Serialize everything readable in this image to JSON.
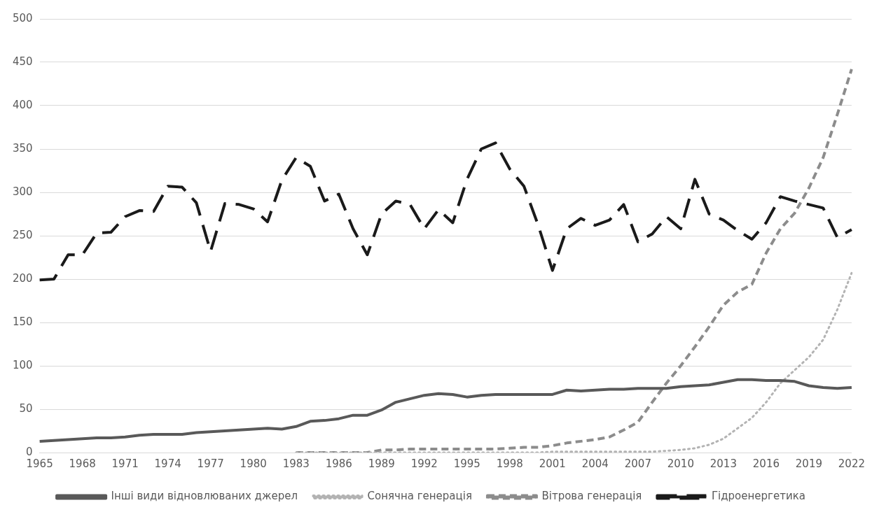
{
  "chart_data": {
    "type": "line",
    "categories": [
      "1965",
      null,
      null,
      "1968",
      null,
      null,
      "1971",
      null,
      null,
      "1974",
      null,
      null,
      "1977",
      null,
      null,
      "1980",
      null,
      null,
      "1983",
      null,
      null,
      "1986",
      null,
      null,
      "1989",
      null,
      null,
      "1992",
      null,
      null,
      "1995",
      null,
      null,
      "1998",
      null,
      null,
      "2001",
      null,
      null,
      "2004",
      null,
      null,
      "2007",
      null,
      null,
      "2010",
      null,
      null,
      "2013",
      null,
      null,
      "2016",
      null,
      null,
      "2019",
      null,
      null,
      "2022"
    ],
    "series": [
      {
        "name": "Інші види відновлюваних джерел",
        "color": "#595959",
        "line_style": "solid",
        "values": [
          13,
          14,
          15,
          16,
          17,
          17,
          18,
          20,
          21,
          21,
          21,
          23,
          24,
          25,
          26,
          27,
          28,
          27,
          30,
          36,
          37,
          39,
          43,
          43,
          49,
          58,
          62,
          66,
          68,
          67,
          64,
          66,
          67,
          67,
          67,
          67,
          67,
          72,
          71,
          72,
          73,
          73,
          74,
          74,
          74,
          76,
          77,
          78,
          81,
          84,
          84,
          83,
          83,
          82,
          77,
          75,
          74,
          75
        ]
      },
      {
        "name": "Сонячна генерація",
        "color": "#b3b3b3",
        "line_style": "dotted",
        "values": [
          null,
          null,
          null,
          null,
          null,
          null,
          null,
          null,
          null,
          null,
          null,
          null,
          null,
          null,
          null,
          null,
          null,
          null,
          0,
          0,
          0,
          0,
          0,
          0,
          0,
          0,
          0,
          0,
          0,
          0,
          0,
          0,
          0,
          0,
          0,
          0,
          1,
          1,
          1,
          1,
          1,
          1,
          1,
          1,
          2,
          3,
          5,
          9,
          16,
          28,
          40,
          58,
          80,
          95,
          110,
          130,
          165,
          207
        ]
      },
      {
        "name": "Вітрова генерація",
        "color": "#8c8c8c",
        "line_style": "dashed",
        "values": [
          null,
          null,
          null,
          null,
          null,
          null,
          null,
          null,
          null,
          null,
          null,
          null,
          null,
          null,
          null,
          null,
          null,
          null,
          0,
          0,
          0,
          0,
          0,
          0,
          3,
          3,
          4,
          4,
          4,
          4,
          4,
          4,
          4,
          5,
          6,
          6,
          8,
          11,
          13,
          15,
          18,
          26,
          35,
          58,
          80,
          100,
          122,
          145,
          170,
          185,
          194,
          230,
          258,
          276,
          305,
          340,
          390,
          442
        ]
      },
      {
        "name": "Гідроенергетика",
        "color": "#1a1a1a",
        "line_style": "dashed",
        "values": [
          199,
          200,
          228,
          228,
          253,
          254,
          272,
          279,
          278,
          307,
          306,
          288,
          232,
          287,
          286,
          281,
          266,
          314,
          340,
          330,
          290,
          298,
          258,
          228,
          275,
          290,
          286,
          258,
          280,
          265,
          315,
          350,
          357,
          327,
          307,
          262,
          210,
          258,
          270,
          262,
          268,
          286,
          243,
          252,
          272,
          258,
          315,
          275,
          268,
          256,
          246,
          265,
          295,
          290,
          286,
          282,
          248,
          257
        ]
      }
    ],
    "ylim": [
      0,
      500
    ],
    "yticks": [
      0,
      50,
      100,
      150,
      200,
      250,
      300,
      350,
      400,
      450,
      500
    ],
    "grid": "y",
    "legend": "bottom",
    "marker": "none"
  }
}
